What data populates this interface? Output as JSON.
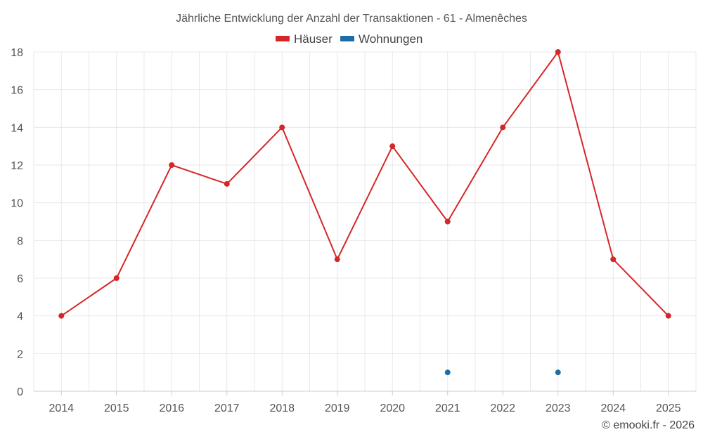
{
  "chart_data": {
    "type": "line",
    "title": "Jährliche Entwicklung der Anzahl der Transaktionen - 61 - Almenêches",
    "categories": [
      "2014",
      "2015",
      "2016",
      "2017",
      "2018",
      "2019",
      "2020",
      "2021",
      "2022",
      "2023",
      "2024",
      "2025"
    ],
    "series": [
      {
        "name": "Häuser",
        "color": "#d62728",
        "values": [
          4,
          6,
          12,
          11,
          14,
          7,
          13,
          9,
          14,
          18,
          7,
          4
        ]
      },
      {
        "name": "Wohnungen",
        "color": "#1f6ea3",
        "values": [
          null,
          null,
          null,
          null,
          null,
          null,
          null,
          1,
          null,
          1,
          null,
          null
        ]
      }
    ],
    "yticks": [
      0,
      2,
      4,
      6,
      8,
      10,
      12,
      14,
      16,
      18
    ],
    "ylim": [
      0,
      18
    ],
    "xlabel": "",
    "ylabel": "",
    "grid": true,
    "legend_position": "top-center"
  },
  "credit": "© emooki.fr - 2026"
}
